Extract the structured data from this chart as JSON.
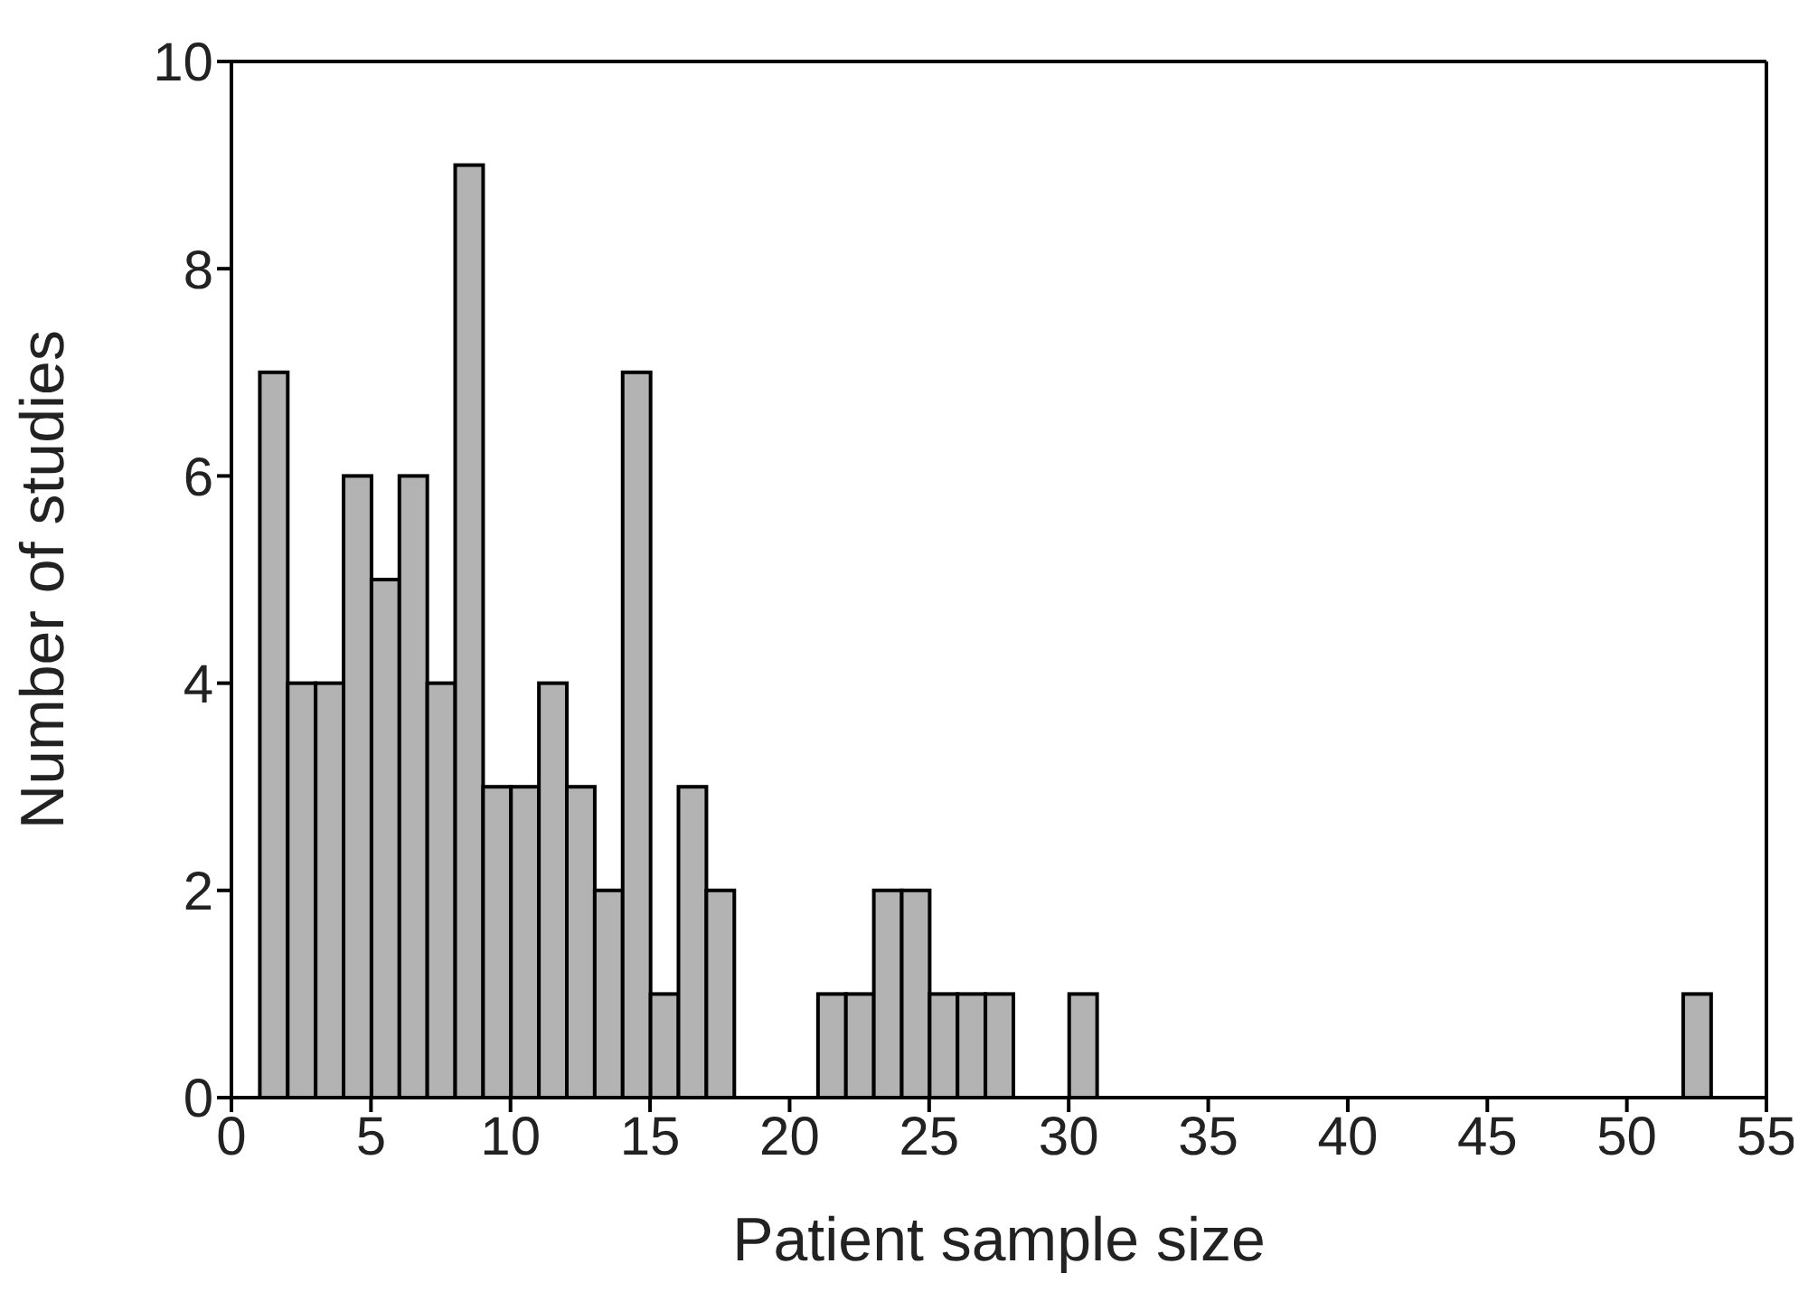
{
  "chart_data": {
    "type": "histogram",
    "xlabel": "Patient sample size",
    "ylabel": "Number of studies",
    "bins": [
      1,
      2,
      3,
      4,
      5,
      6,
      7,
      8,
      9,
      10,
      11,
      12,
      13,
      14,
      15,
      16,
      17,
      18,
      19,
      20,
      21,
      22,
      23,
      24,
      25,
      26,
      27,
      28,
      29,
      30,
      31,
      32,
      33,
      34,
      35,
      36,
      37,
      38,
      39,
      40,
      41,
      42,
      43,
      44,
      45,
      46,
      47,
      48,
      49,
      50,
      51,
      52,
      53
    ],
    "values": [
      7,
      4,
      4,
      6,
      5,
      6,
      4,
      9,
      3,
      3,
      4,
      3,
      2,
      7,
      1,
      3,
      2,
      0,
      0,
      0,
      1,
      1,
      2,
      2,
      1,
      1,
      1,
      0,
      0,
      1,
      0,
      0,
      0,
      0,
      0,
      0,
      0,
      0,
      0,
      0,
      0,
      0,
      0,
      0,
      0,
      0,
      0,
      0,
      0,
      0,
      0,
      1
    ],
    "color": "#b3b3b3",
    "xlim": [
      0,
      55
    ],
    "xticks": [
      0,
      5,
      10,
      15,
      20,
      25,
      30,
      35,
      40,
      45,
      50,
      55
    ],
    "ylim": [
      0,
      10
    ],
    "yticks": [
      0,
      2,
      4,
      6,
      8,
      10
    ],
    "grid": false
  }
}
